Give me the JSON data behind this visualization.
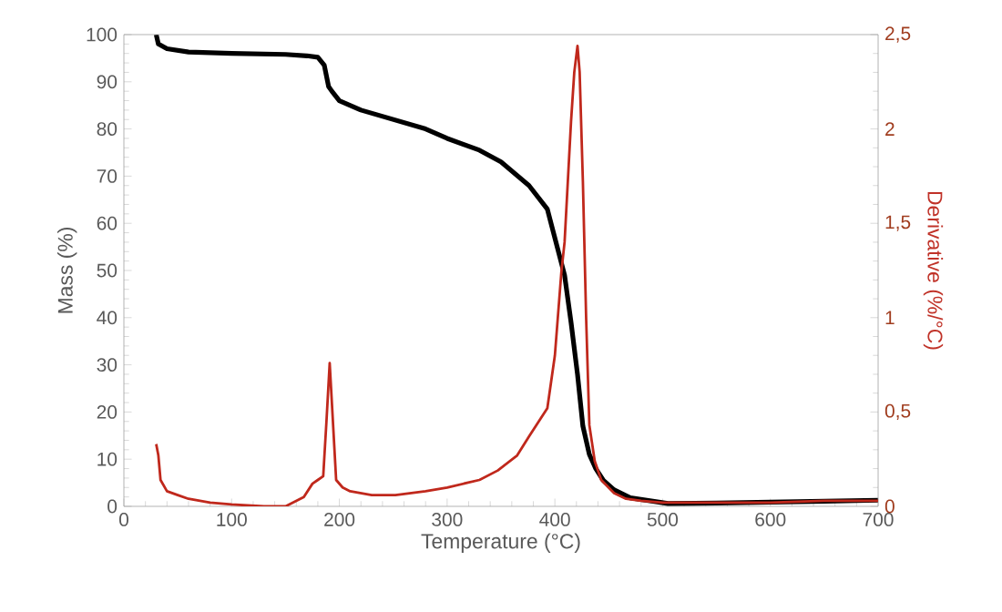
{
  "chart_data": {
    "type": "line",
    "xlabel": "Temperature (°C)",
    "ylabel": "Mass (%)",
    "y2label": "Derivative (%/°C)",
    "xlim": [
      0,
      700
    ],
    "xticks": [
      0,
      100,
      200,
      300,
      400,
      500,
      600,
      700
    ],
    "ylim": [
      0,
      100
    ],
    "yticks": [
      0,
      10,
      20,
      30,
      40,
      50,
      60,
      70,
      80,
      90,
      100
    ],
    "y2lim": [
      0,
      2.5
    ],
    "y2ticks": [
      0,
      {
        "value": 0.5,
        "label": "0,5"
      },
      1,
      {
        "value": 1.5,
        "label": "1,5"
      },
      2,
      {
        "value": 2.5,
        "label": "2,5"
      }
    ],
    "grid": false,
    "marker": "none",
    "line_style": "solid",
    "series": [
      {
        "color": "#000000",
        "x": [
          30,
          32,
          40,
          60,
          100,
          150,
          170,
          180,
          186,
          190,
          193,
          200,
          220,
          250,
          280,
          300,
          330,
          350,
          376,
          393,
          409,
          415,
          421,
          426,
          432,
          438,
          445,
          455,
          470,
          505,
          550,
          600,
          650,
          700
        ],
        "values": [
          100,
          98,
          97,
          96.3,
          96,
          95.8,
          95.5,
          95.2,
          93.5,
          89,
          88,
          86,
          84,
          82,
          80,
          78,
          75.5,
          73,
          68,
          63,
          49,
          39,
          28,
          17,
          11,
          8,
          5.5,
          3.5,
          1.8,
          0.6,
          0.7,
          0.9,
          1.1,
          1.3
        ]
      },
      {
        "color": "#c0281c",
        "axis": "y2",
        "x": [
          30,
          32,
          34,
          40,
          50,
          60,
          70,
          80,
          100,
          130,
          150,
          167,
          175,
          180,
          185,
          188,
          191,
          194,
          197,
          203,
          210,
          230,
          252,
          280,
          300,
          330,
          347,
          365,
          376,
          393,
          400,
          406,
          409,
          415,
          418,
          421,
          423,
          426,
          429,
          432,
          437,
          443,
          455,
          466,
          480,
          500,
          550,
          600,
          650,
          700
        ],
        "values": [
          0.33,
          0.27,
          0.14,
          0.08,
          0.06,
          0.04,
          0.03,
          0.02,
          0.01,
          0.0,
          0.0,
          0.05,
          0.12,
          0.14,
          0.16,
          0.45,
          0.76,
          0.45,
          0.14,
          0.1,
          0.08,
          0.06,
          0.06,
          0.08,
          0.1,
          0.14,
          0.19,
          0.27,
          0.37,
          0.52,
          0.8,
          1.24,
          1.4,
          2.04,
          2.3,
          2.44,
          2.3,
          1.72,
          1.0,
          0.43,
          0.24,
          0.14,
          0.07,
          0.04,
          0.03,
          0.02,
          0.02,
          0.02,
          0.03,
          0.03
        ]
      }
    ]
  }
}
